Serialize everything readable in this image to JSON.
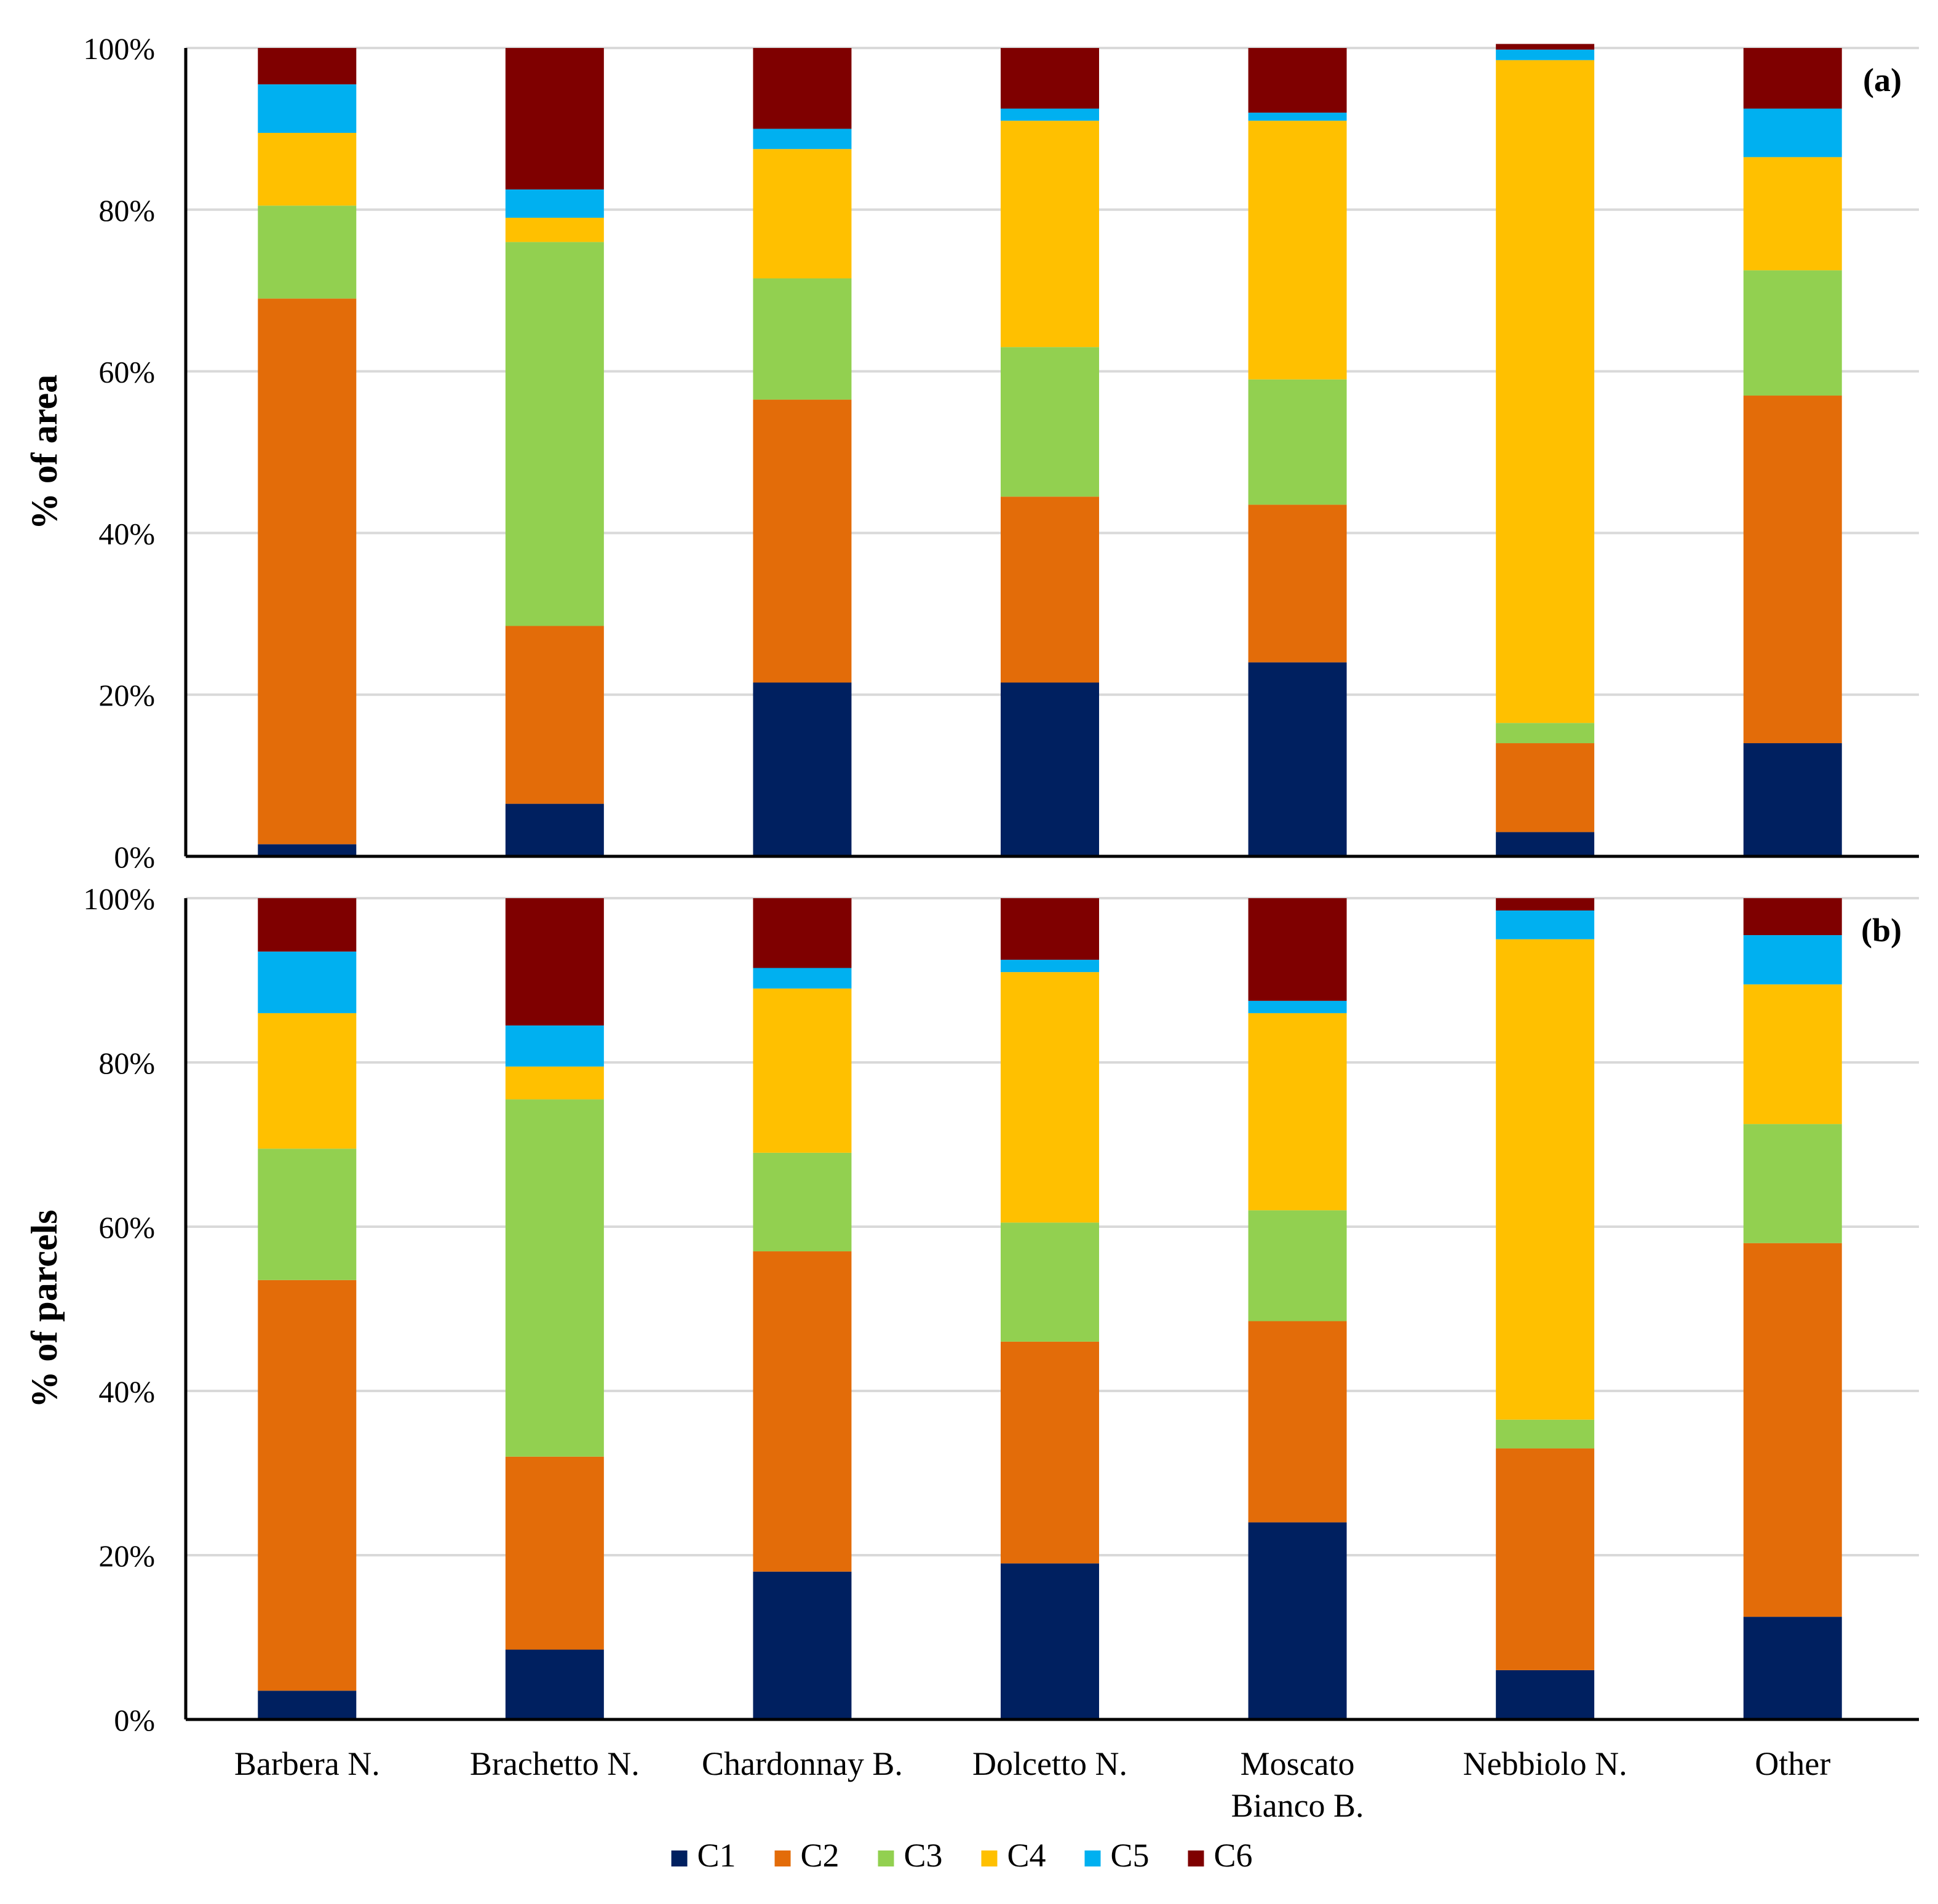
{
  "chart_data": [
    {
      "type": "bar",
      "stacked": true,
      "panel_label": "(a)",
      "ylabel": "% of area",
      "xlabel": "",
      "ylim": [
        0,
        100
      ],
      "yticks": [
        "0%",
        "20%",
        "40%",
        "60%",
        "80%",
        "100%"
      ],
      "categories": [
        {
          "line1": "Barbera N.",
          "line2": ""
        },
        {
          "line1": "Brachetto N.",
          "line2": ""
        },
        {
          "line1": "Chardonnay B.",
          "line2": ""
        },
        {
          "line1": "Dolcetto N.",
          "line2": ""
        },
        {
          "line1": "Moscato",
          "line2": "Bianco B."
        },
        {
          "line1": "Nebbiolo N.",
          "line2": ""
        },
        {
          "line1": "Other",
          "line2": ""
        }
      ],
      "series": [
        {
          "name": "C1",
          "values": [
            1.5,
            6.5,
            21.5,
            21.5,
            24.0,
            3.0,
            14.0
          ]
        },
        {
          "name": "C2",
          "values": [
            67.5,
            22.0,
            35.0,
            23.0,
            19.5,
            11.0,
            43.0
          ]
        },
        {
          "name": "C3",
          "values": [
            11.5,
            47.5,
            15.0,
            18.5,
            15.5,
            2.5,
            15.5
          ]
        },
        {
          "name": "C4",
          "values": [
            9.0,
            3.0,
            16.0,
            28.0,
            32.0,
            82.0,
            14.0
          ]
        },
        {
          "name": "C5",
          "values": [
            6.0,
            3.5,
            2.5,
            1.5,
            1.0,
            1.3,
            6.0
          ]
        },
        {
          "name": "C6",
          "values": [
            4.5,
            17.5,
            10.0,
            7.5,
            8.0,
            0.7,
            7.5
          ]
        }
      ]
    },
    {
      "type": "bar",
      "stacked": true,
      "panel_label": "(b)",
      "ylabel": "% of parcels",
      "xlabel": "",
      "ylim": [
        0,
        100
      ],
      "yticks": [
        "0%",
        "20%",
        "40%",
        "60%",
        "80%",
        "100%"
      ],
      "categories": [
        {
          "line1": "Barbera N.",
          "line2": ""
        },
        {
          "line1": "Brachetto N.",
          "line2": ""
        },
        {
          "line1": "Chardonnay B.",
          "line2": ""
        },
        {
          "line1": "Dolcetto N.",
          "line2": ""
        },
        {
          "line1": "Moscato",
          "line2": "Bianco B."
        },
        {
          "line1": "Nebbiolo N.",
          "line2": ""
        },
        {
          "line1": "Other",
          "line2": ""
        }
      ],
      "series": [
        {
          "name": "C1",
          "values": [
            3.5,
            8.5,
            18.0,
            19.0,
            24.0,
            6.0,
            12.5
          ]
        },
        {
          "name": "C2",
          "values": [
            50.0,
            23.5,
            39.0,
            27.0,
            24.5,
            27.0,
            45.5
          ]
        },
        {
          "name": "C3",
          "values": [
            16.0,
            43.5,
            12.0,
            14.5,
            13.5,
            3.5,
            14.5
          ]
        },
        {
          "name": "C4",
          "values": [
            16.5,
            4.0,
            20.0,
            30.5,
            24.0,
            58.5,
            17.0
          ]
        },
        {
          "name": "C5",
          "values": [
            7.5,
            5.0,
            2.5,
            1.5,
            1.5,
            3.5,
            6.0
          ]
        },
        {
          "name": "C6",
          "values": [
            6.5,
            15.5,
            8.5,
            7.5,
            12.5,
            1.5,
            4.5
          ]
        }
      ]
    }
  ],
  "legend": {
    "position": "bottom-center",
    "items": [
      {
        "name": "C1",
        "color": "#002060"
      },
      {
        "name": "C2",
        "color": "#E36C09"
      },
      {
        "name": "C3",
        "color": "#92D050"
      },
      {
        "name": "C4",
        "color": "#FFC000"
      },
      {
        "name": "C5",
        "color": "#00B0F0"
      },
      {
        "name": "C6",
        "color": "#7F0000"
      }
    ]
  },
  "colors": {
    "gridline": "#D9D9D9",
    "axis": "#000000"
  }
}
